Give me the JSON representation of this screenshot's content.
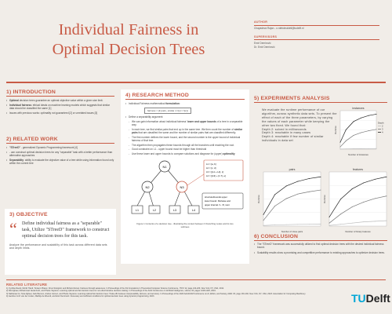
{
  "poster": {
    "title_line1": "Individual Fairness in",
    "title_line2": "Optimal Decision Trees",
    "author_label": "AUTHOR",
    "author_name": "Chayadeva Rajan - c.rdebdeuidetl@tudelft.nl",
    "supervisors_label": "SUPERVISORS",
    "supervisor_1": "Emir Demirović",
    "supervisor_2": "Dr. Emir Demirović"
  },
  "intro": {
    "num": "1)",
    "heading": "INTRODUCTION",
    "bullets": [
      {
        "bold": "Optimal",
        "text": " decision trees guarantee an optimal objective value within a given size limit."
      },
      {
        "bold": "Individual fairness",
        "text": ": ethical ideals on machine learning models which suggests that similar data should be classified the same [1]"
      },
      {
        "bold": "",
        "text": "Issues with previous works: optimality not guaranteed [2] or unrelated issues [3]"
      }
    ]
  },
  "related": {
    "num": "2)",
    "heading": "RELATED WORK",
    "bullets": [
      {
        "bold": "\"STreeD\"",
        "text": " - generalized Dynamic Programming framework [4]"
      },
      {
        "bold": "",
        "text": "- can construct optimal decision trees for any \"separable\" task with a better performance than alternative approaches"
      },
      {
        "bold": "Separability",
        "text": ": ability to evaluate the objective value of a tree while using information found only within the current tree"
      }
    ]
  },
  "objective": {
    "num": "3)",
    "heading": "OBJECTIVE",
    "quote": "Define individual fairness as a \"separable\" task, Utilize \"STreeD\" framework to construct optimal decision trees for this task.",
    "footer": "Analyze the performance and scalability of this task across different data sets and depth limits."
  },
  "method": {
    "num": "4)",
    "heading": "RESEARCH METHOD",
    "bullets": [
      {
        "level": 0,
        "bold": "",
        "text": "Individual Fairness mathematical ",
        "bold2": "formulation",
        "tail": ":"
      },
      {
        "level": 0,
        "bold": "",
        "text": "Define a separability argument:",
        "bold2": "",
        "tail": ""
      },
      {
        "level": 1,
        "bold": "",
        "text": "We can gain information about individual fairness' ",
        "bold2": "lower and upper bounds",
        "tail": " of a tree in a separable way."
      },
      {
        "level": 1,
        "bold": "",
        "text": "In each tree, we find similar pairs that end up in the same tree. We then count the number of ",
        "bold2": "similar pairs",
        "tail": " that are classified the same and the number of similar pairs that are classified differently."
      },
      {
        "level": 1,
        "bold": "",
        "text": "The first number defines the lower bound, and the second number is the upper bound of individual fairness of that tree.",
        "bold2": "",
        "tail": ""
      },
      {
        "level": 1,
        "bold": "",
        "text": "The algorithm then propagates these bounds through all the branches until reaching the root.",
        "bold2": "",
        "tail": ""
      },
      {
        "level": 1,
        "bold": "",
        "text": "Good constraint",
        "bold2": "",
        "tail": " on L1 - upper bound must be higher than threshold"
      },
      {
        "level": 1,
        "bold": "",
        "text": "Use these lower and upper bounds to compare solutions and diagnose for (upper) ",
        "bold2": "optimality",
        "tail": "."
      }
    ],
    "formula": "fairness = (Σ pairs, similar ∧ f(x) = f(x'))",
    "figure_caption": "Figure 1 Contents of a decision tree - illustrating the context between 3 branching nodes and its two subtrees",
    "tree": {
      "root": "N1",
      "left": "N2",
      "right": "N3",
      "leaves": [
        "L1",
        "L2",
        "L3",
        "L4"
      ],
      "info_top": [
        "L1 = [a, b]",
        "L2 = [c, d]",
        "L3 = [(L1 + L2), c]",
        "L4 = [(L3) + (1.7), e]"
      ],
      "info_bottom": [
        "structure/bounds upper",
        "lower bound. Pairwise and",
        "upper interval / L. 3f, next"
      ]
    }
  },
  "experiments": {
    "num": "5)",
    "heading": "EXPERIMENTS ANALYSIS",
    "description": "We evaluate the runtime performance of our algorithm, across synthetic data sets. To present the effect of each of the three parameters, by varying the values of each parameter while keeping the other two fixed. We found that:\nDepth 2: solved in milliseconds\nDepth 3: reachable in many cases\nDepth 4: reachable if few number of similar individuals in data set"
  },
  "conclusion": {
    "num": "6)",
    "heading": "CONCLUSION",
    "bullets": [
      "The \"STreeD\" framework was successfully utilized to find optimal decision trees with the desired individual fairness bound.",
      "Scalability results show a promising and competitive performance to existing approaches to optimize decision trees."
    ]
  },
  "literature": {
    "heading": "RELATED LITERATURE",
    "items": [
      "1) Cynthia Dwork, Moritz Hardt, Toniann Pitassi, Omer Reingold, and Richard Zemel. Fairness through awareness. In Proceedings of the 3rd Innovations in Theoretical Computer Science Conference, ITCS '12, page 214-226, New York, NY, USA, 2012.",
      "2) Kiki Aghaei, Mohammad Javad Azizi, and Phebe Vayanos. Learning optimal and fair decision trees for non-discriminative decision-making. In Proceedings of the AAAI Conference on Artificial Intelligence, volume 33, pages 1418-1426, 2019.",
      "3) Nathanael Jo, Sina Aghaei, Jack Benson, Andres Gomez, and Phebe Vayanos. Learning optimal fair decision trees: Trade-offs between interpretability, fairness, and accuracy. In Proceedings of the 2023 AAAI/ACM Conference on AI, Ethics, and Society, AIES '23, page 181-192, New York, NY, USA, 2023. Association for Computing Machinery.",
      "4) Jacobus G.M. van der Linden, Mathijs de Weerdt, and Emir Demirović. Necessary and sufficient conditions for optimal decision trees using dynamic programming, 2023."
    ]
  },
  "logo": {
    "tu": "TU",
    "delft": "Delft"
  },
  "colors": {
    "accent": "#c85a45",
    "background": "#f1ede8",
    "logo_blue": "#00a6d6"
  },
  "chart_data": [
    {
      "type": "line",
      "title": "instances",
      "xlabel": "Number of instances",
      "ylabel": "Runtime",
      "legend_title": "Depth",
      "legend_placement": "right",
      "series": [
        {
          "name": "2",
          "x": [
            50,
            200,
            400,
            600,
            800,
            1000
          ],
          "values": [
            0.02,
            0.05,
            0.08,
            0.1,
            0.12,
            0.14
          ]
        },
        {
          "name": "3",
          "x": [
            50,
            200,
            400,
            600,
            800,
            1000
          ],
          "values": [
            0.5,
            1.8,
            3.0,
            3.6,
            4.0,
            4.3
          ]
        },
        {
          "name": "4",
          "x": [
            50,
            200,
            400,
            600,
            800,
            1000
          ],
          "values": [
            1.5,
            4.2,
            6.0,
            6.8,
            7.3,
            7.6
          ]
        }
      ]
    },
    {
      "type": "line",
      "title": "pairs",
      "xlabel": "Number of close pairs",
      "ylabel": "Runtime",
      "series": [
        {
          "name": "2",
          "x": [
            0,
            100,
            200,
            300,
            400,
            500
          ],
          "values": [
            0.1,
            0.2,
            0.25,
            0.3,
            0.32,
            0.34
          ]
        },
        {
          "name": "3",
          "x": [
            0,
            100,
            200,
            300,
            400,
            500
          ],
          "values": [
            1.0,
            3.5,
            4.8,
            5.6,
            6.0,
            6.3
          ]
        },
        {
          "name": "4",
          "x": [
            0,
            100,
            200,
            300,
            400,
            500
          ],
          "values": [
            2.0,
            5.5,
            7.0,
            7.8,
            8.3,
            8.6
          ]
        }
      ]
    },
    {
      "type": "line",
      "title": "features",
      "xlabel": "Number of binary features",
      "ylabel": "Runtime",
      "series": [
        {
          "name": "2",
          "x": [
            0,
            20,
            40,
            60,
            80,
            100
          ],
          "values": [
            0.1,
            0.3,
            0.5,
            0.7,
            0.8,
            0.9
          ]
        },
        {
          "name": "3",
          "x": [
            0,
            20,
            40,
            60,
            80,
            100
          ],
          "values": [
            0.5,
            2.0,
            3.2,
            4.0,
            4.6,
            5.0
          ]
        },
        {
          "name": "4",
          "x": [
            0,
            20,
            40,
            60,
            80,
            100
          ],
          "values": [
            1.5,
            4.5,
            6.2,
            7.2,
            7.8,
            8.2
          ]
        }
      ]
    }
  ]
}
